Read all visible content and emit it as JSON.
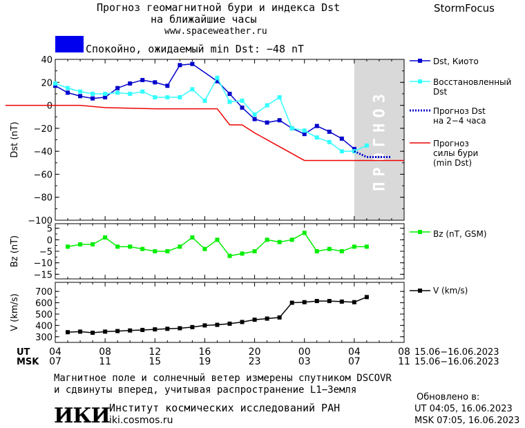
{
  "header": {
    "title_line1": "Прогноз геомагнитной бури и индекса Dst",
    "title_line2": "на ближайшие часы",
    "site": "www.spaceweather.ru",
    "brand": "StormFocus",
    "status_text": "Спокойно, ожидаемый min Dst: −48 nT",
    "status_color": "#0000ee"
  },
  "footer": {
    "note_line1": "Магнитное поле и солнечный ветер измерены спутником DSCOVR",
    "note_line2": "и сдвинуты вперед, учитывая распространение L1−Земля",
    "institute": "Институт космических исследований РАН",
    "institute_site": "iki.cosmos.ru",
    "logo_text": "ИКИ",
    "updated_label": "Обновлено в:",
    "updated_ut": "UT   04:05, 16.06.2023",
    "updated_msk": "MSK 07:05, 16.06.2023"
  },
  "chart_data": [
    {
      "type": "line",
      "ylabel": "Dst (nT)",
      "ylim": [
        -100,
        40
      ],
      "yticks": [
        "40",
        "20",
        "0",
        "−20",
        "−40",
        "−60",
        "−80",
        "−100"
      ],
      "forecast_label": "ПРОГНОЗ",
      "x_hours_ut": [
        0,
        24
      ],
      "series": [
        {
          "name": "Dst, Киото",
          "color": "#0000cc",
          "x": [
            4,
            5,
            6,
            7,
            8,
            9,
            10,
            11,
            12,
            13,
            14,
            15,
            17,
            18,
            19,
            20,
            21,
            22,
            23,
            24,
            25,
            26,
            27,
            28
          ],
          "values": [
            17,
            11,
            8,
            6,
            7,
            15,
            19,
            22,
            20,
            17,
            35,
            36,
            21,
            10,
            -2,
            -12,
            -15,
            -13,
            -20,
            -25,
            -18,
            -23,
            -29,
            -38
          ]
        },
        {
          "name": "Восстановленный Dst",
          "color": "#33ffff",
          "x": [
            4,
            5,
            6,
            7,
            8,
            9,
            10,
            11,
            12,
            13,
            14,
            15,
            16,
            17,
            18,
            19,
            20,
            21,
            22,
            23,
            24,
            25,
            26,
            27,
            28,
            29
          ],
          "values": [
            19,
            15,
            12,
            10,
            10,
            11,
            10,
            12,
            7,
            7,
            7,
            14,
            4,
            24,
            3,
            4,
            -8,
            0,
            7,
            -20,
            -22,
            -28,
            -32,
            -40,
            -40,
            -35
          ]
        },
        {
          "name": "Прогноз Dst на 2−4 часа",
          "color": "#0000cc",
          "dashed": true,
          "x": [
            28,
            29,
            30,
            31
          ],
          "values": [
            -40,
            -45,
            -45,
            -45
          ]
        },
        {
          "name": "Прогноз силы бури (min Dst)",
          "color": "#ee0000",
          "x": [
            0,
            6,
            8,
            12,
            17,
            18,
            19,
            20,
            24,
            32
          ],
          "values": [
            0,
            0,
            -2,
            -3,
            -3,
            -17,
            -17,
            -24,
            -48,
            -48
          ]
        }
      ],
      "legend": [
        "Dst, Киото",
        "Восстановленный Dst",
        "Прогноз Dst на 2−4 часа",
        "Прогноз силы бури (min Dst)"
      ]
    },
    {
      "type": "line",
      "ylabel": "Bz (nT)",
      "ylim": [
        -17,
        7
      ],
      "yticks": [
        "5",
        "0",
        "−5",
        "−10",
        "−15"
      ],
      "series": [
        {
          "name": "Bz (nT, GSM)",
          "color": "#00ee00",
          "x": [
            5,
            6,
            7,
            8,
            9,
            10,
            11,
            12,
            13,
            14,
            15,
            16,
            17,
            18,
            19,
            20,
            21,
            22,
            23,
            24,
            25,
            26,
            27,
            28,
            29
          ],
          "values": [
            -3,
            -2,
            -2,
            1,
            -3,
            -3,
            -4,
            -5,
            -5,
            -3,
            1,
            -4,
            0,
            -7,
            -6,
            -5,
            0,
            -1,
            0,
            3,
            -5,
            -4,
            -5,
            -3,
            -3
          ]
        }
      ]
    },
    {
      "type": "line",
      "ylabel": "V (km/s)",
      "ylim": [
        250,
        780
      ],
      "yticks": [
        "700",
        "600",
        "500",
        "400",
        "300"
      ],
      "series": [
        {
          "name": "V (km/s)",
          "color": "#000000",
          "x": [
            5,
            6,
            7,
            8,
            9,
            10,
            11,
            12,
            13,
            14,
            15,
            16,
            17,
            18,
            19,
            20,
            21,
            22,
            23,
            24,
            25,
            26,
            27,
            28,
            29
          ],
          "values": [
            340,
            345,
            335,
            345,
            350,
            355,
            360,
            365,
            370,
            375,
            385,
            400,
            405,
            415,
            430,
            450,
            460,
            470,
            600,
            605,
            615,
            615,
            610,
            605,
            650
          ]
        }
      ],
      "xticks_ut": [
        "04",
        "08",
        "12",
        "16",
        "20",
        "00",
        "04",
        "08"
      ],
      "xticks_msk": [
        "07",
        "11",
        "15",
        "19",
        "23",
        "03",
        "07",
        "11"
      ],
      "x_axis_ut_label": "UT",
      "x_axis_msk_label": "MSK",
      "date_range_ut": "15.06−16.06.2023",
      "date_range_msk": "15.06−16.06.2023"
    }
  ]
}
